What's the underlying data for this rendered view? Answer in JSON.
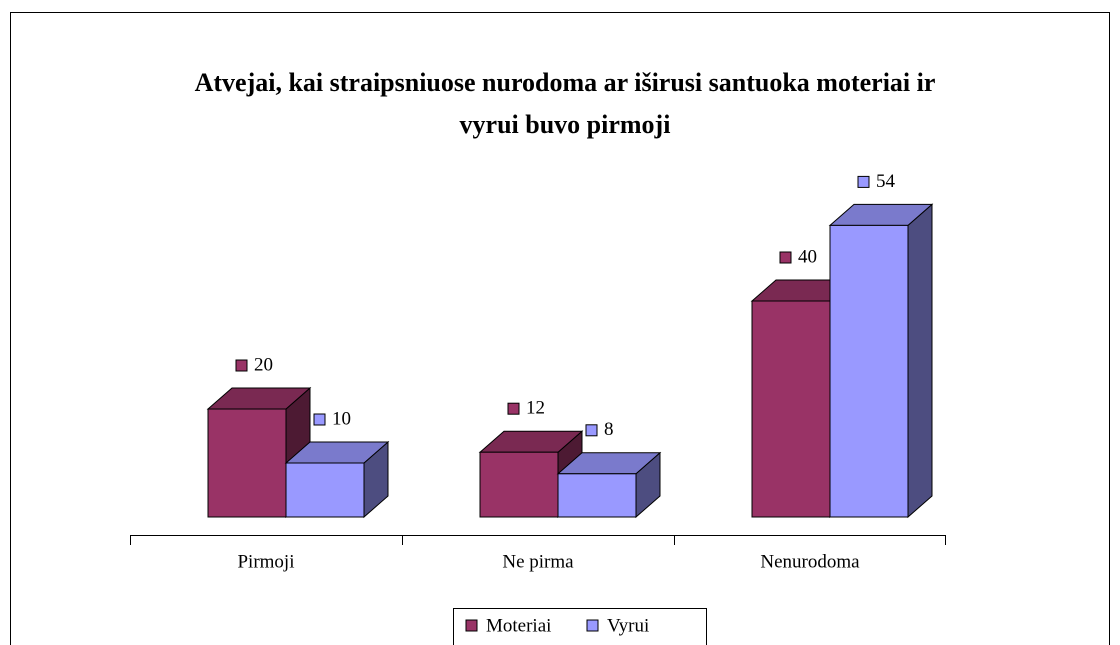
{
  "chart_data": {
    "type": "bar",
    "title": "Atvejai, kai straipsniuose nurodoma ar iširusi santuoka moteriai ir vyrui buvo pirmoji",
    "categories": [
      "Pirmoji",
      "Ne pirma",
      "Nenurodoma"
    ],
    "series": [
      {
        "name": "Moteriai",
        "color": "#993366",
        "values": [
          20,
          12,
          40
        ]
      },
      {
        "name": "Vyrui",
        "color": "#9999ff",
        "values": [
          10,
          8,
          54
        ]
      }
    ],
    "legend": "bottom"
  }
}
